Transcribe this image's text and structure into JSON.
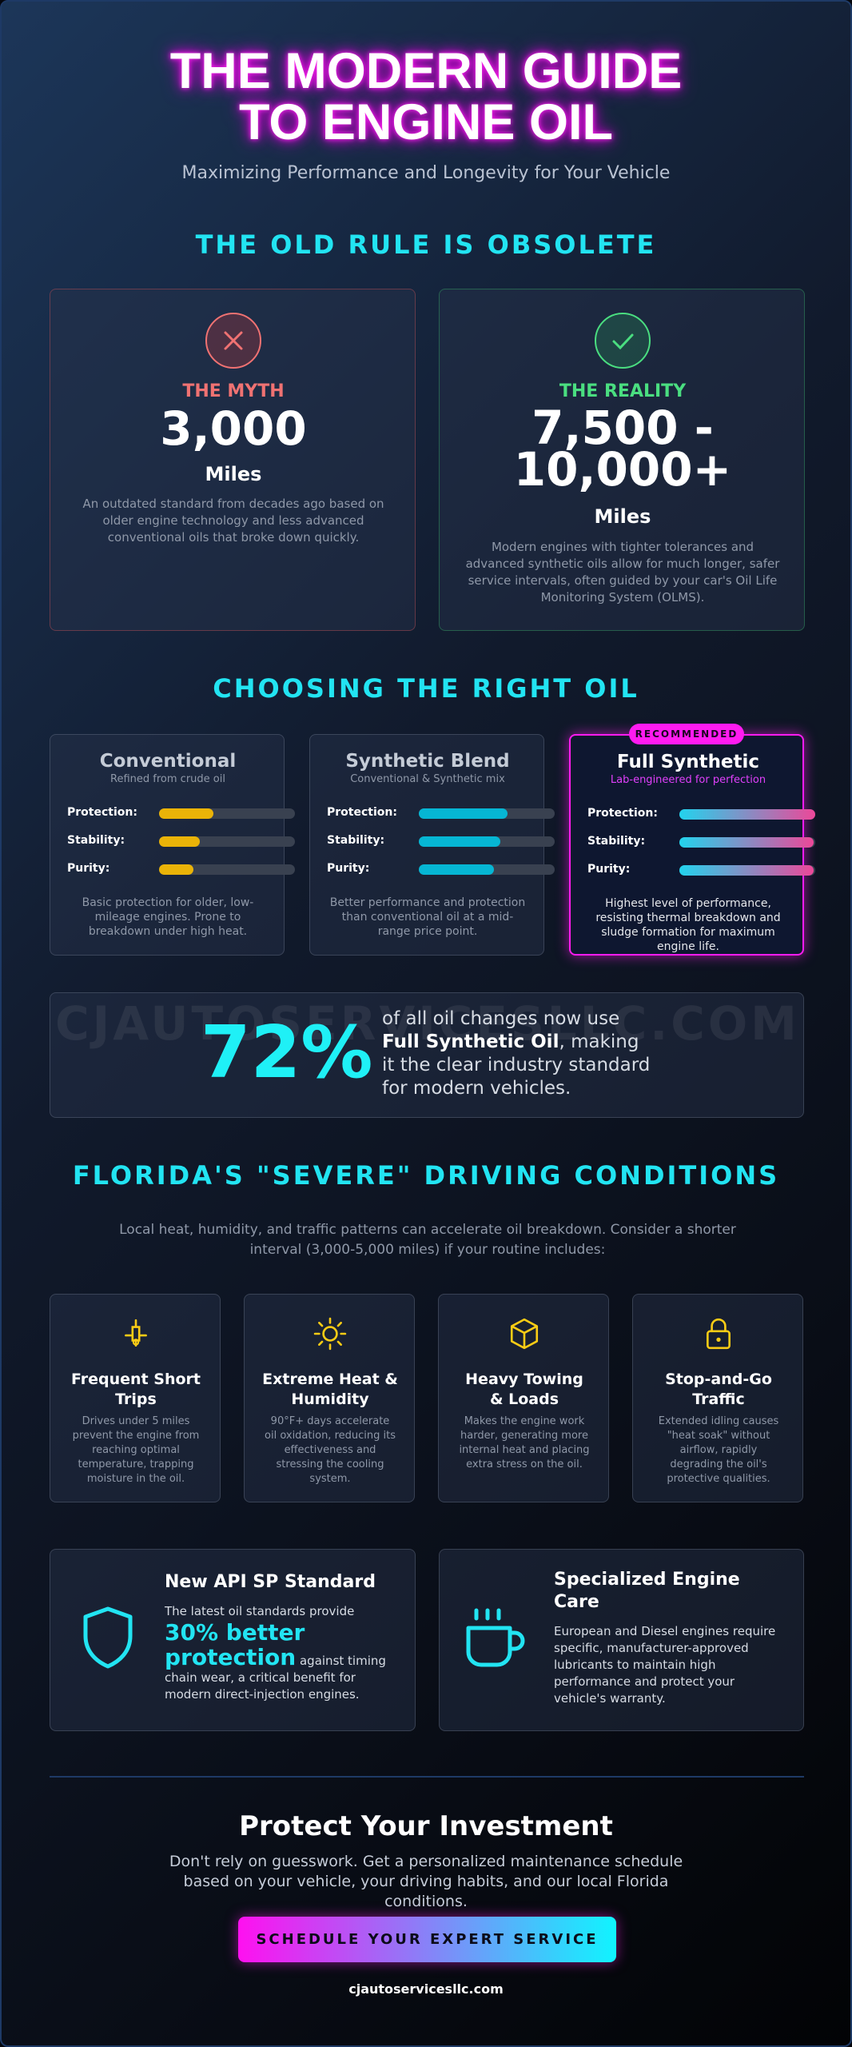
{
  "header": {
    "title": "THE MODERN GUIDE TO ENGINE OIL",
    "subtitle": "Maximizing Performance and Longevity for Your Vehicle"
  },
  "old_rule": {
    "heading": "THE OLD RULE IS OBSOLETE",
    "myth": {
      "label": "THE MYTH",
      "value": "3,000",
      "unit": "Miles",
      "description": "An outdated standard from decades ago based on older engine technology and less advanced conventional oils that broke down quickly."
    },
    "reality": {
      "label": "THE REALITY",
      "value": "7,500 - 10,000+",
      "unit": "Miles",
      "description": "Modern engines with tighter tolerances and advanced synthetic oils allow for much longer, safer service intervals, often guided by your car's Oil Life Monitoring System (OLMS)."
    }
  },
  "oil": {
    "heading": "CHOOSING THE RIGHT OIL",
    "badge": "RECOMMENDED",
    "options": [
      {
        "name": "Conventional",
        "subtitle": "Refined from crude oil",
        "metrics": [
          "Protection:",
          "Stability:",
          "Purity:"
        ],
        "description": "Basic protection for older, low-mileage engines. Prone to breakdown under high heat."
      },
      {
        "name": "Synthetic Blend",
        "subtitle": "Conventional & Synthetic mix",
        "metrics": [
          "Protection:",
          "Stability:",
          "Purity:"
        ],
        "description": "Better performance and protection than conventional oil at a mid-range price point."
      },
      {
        "name": "Full Synthetic",
        "subtitle": "Lab-engineered for perfection",
        "metrics": [
          "Protection:",
          "Stability:",
          "Purity:"
        ],
        "description": "Highest level of performance, resisting thermal breakdown and sludge formation for maximum engine life."
      }
    ]
  },
  "stat": {
    "watermark": "CJAUTOSERVICESLLC.COM",
    "value": "72%",
    "text_before": "of all oil changes now use ",
    "text_bold": "Full Synthetic Oil",
    "text_after": ", making it the clear industry standard for modern vehicles."
  },
  "florida": {
    "heading": "FLORIDA'S \"SEVERE\" DRIVING CONDITIONS",
    "intro": "Local heat, humidity, and traffic patterns can accelerate oil breakdown. Consider a shorter interval (3,000-5,000 miles) if your routine includes:",
    "items": [
      {
        "title": "Frequent Short Trips",
        "description": "Drives under 5 miles prevent the engine from reaching optimal temperature, trapping moisture in the oil."
      },
      {
        "title": "Extreme Heat & Humidity",
        "description": "90°F+ days accelerate oil oxidation, reducing its effectiveness and stressing the cooling system."
      },
      {
        "title": "Heavy Towing & Loads",
        "description": "Makes the engine work harder, generating more internal heat and placing extra stress on the oil."
      },
      {
        "title": "Stop-and-Go Traffic",
        "description": "Extended idling causes \"heat soak\" without airflow, rapidly degrading the oil's protective qualities."
      }
    ]
  },
  "features": [
    {
      "title": "New API SP Standard",
      "intro": "The latest oil standards provide",
      "highlight": "30% better protection",
      "rest": " against timing chain wear, a critical benefit for modern direct-injection engines."
    },
    {
      "title": "Specialized Engine Care",
      "description": "European and Diesel engines require specific, manufacturer-approved lubricants to maintain high performance and protect your vehicle's warranty."
    }
  ],
  "cta": {
    "title": "Protect Your Investment",
    "text": "Don't rely on guesswork. Get a personalized maintenance schedule based on your vehicle, your driving habits, and our local Florida conditions.",
    "button": "SCHEDULE YOUR EXPERT SERVICE",
    "url": "cjautoservicesllc.com"
  }
}
